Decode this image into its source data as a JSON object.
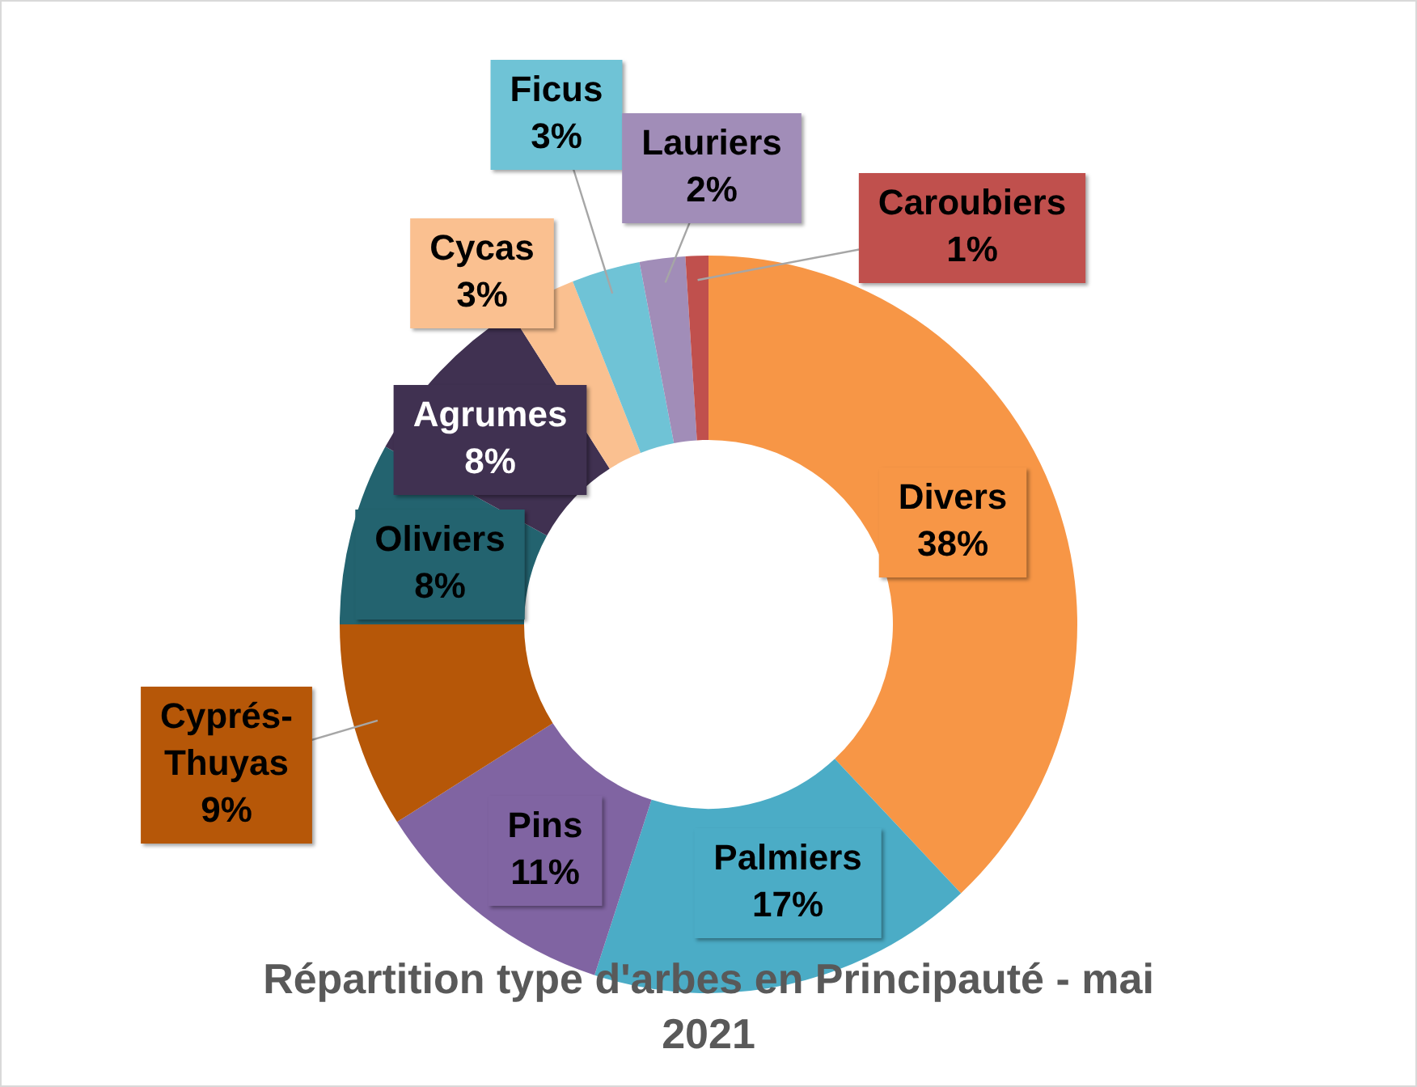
{
  "chart_data": {
    "type": "donut",
    "title": "Répartition type d'arbes en Principauté - mai 2021",
    "categories": [
      "Divers",
      "Palmiers",
      "Pins",
      "Cyprés-Thuyas",
      "Oliviers",
      "Agrumes",
      "Cycas",
      "Ficus",
      "Lauriers",
      "Caroubiers"
    ],
    "values": [
      38,
      17,
      11,
      9,
      8,
      8,
      3,
      3,
      2,
      1
    ],
    "value_labels": [
      "38%",
      "17%",
      "11%",
      "9%",
      "8%",
      "8%",
      "3%",
      "3%",
      "2%",
      "1%"
    ],
    "colors": [
      "#f79646",
      "#4bacc6",
      "#8064a2",
      "#b65708",
      "#23636f",
      "#403151",
      "#fac090",
      "#6fc3d6",
      "#a18db8",
      "#c0504d"
    ],
    "legend": false
  }
}
